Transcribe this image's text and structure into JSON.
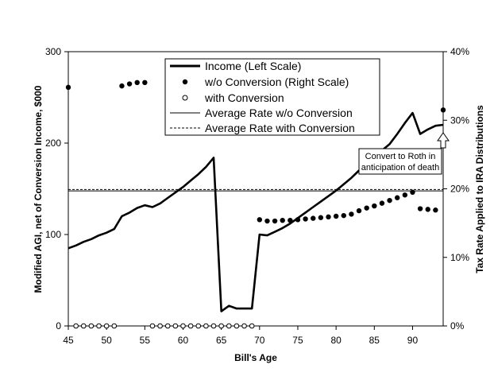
{
  "chart_data": {
    "type": "line",
    "xlabel": "Bill's Age",
    "ylabel_left": "Modified AGI, net of Conversion Income, $000",
    "ylabel_right": "Tax Rate Applied to IRA Distributions",
    "xlim": [
      45,
      94
    ],
    "ylim_left": [
      0,
      300
    ],
    "ylim_right": [
      0,
      40
    ],
    "x_ticks": [
      "45",
      "50",
      "55",
      "60",
      "65",
      "70",
      "75",
      "80",
      "85",
      "90"
    ],
    "y_left_ticks": [
      "0",
      "100",
      "200",
      "300"
    ],
    "y_right_ticks": [
      "0%",
      "10%",
      "20%",
      "30%",
      "40%"
    ],
    "legend_position": "top-center",
    "grid": false,
    "series": [
      {
        "name": "Income (Left Scale)",
        "axis": "left",
        "style": "thick-line",
        "x": [
          45,
          46,
          47,
          48,
          49,
          50,
          51,
          52,
          53,
          54,
          55,
          56,
          57,
          58,
          59,
          60,
          61,
          62,
          63,
          64,
          65,
          66,
          67,
          68,
          69,
          70,
          71,
          72,
          73,
          74,
          75,
          76,
          77,
          78,
          79,
          80,
          81,
          82,
          83,
          84,
          85,
          86,
          87,
          88,
          89,
          90,
          91,
          92,
          93,
          94
        ],
        "values": [
          85,
          88,
          92,
          95,
          99,
          102,
          106,
          120,
          124,
          129,
          132,
          130,
          134,
          140,
          146,
          152,
          159,
          166,
          174,
          184,
          16,
          22,
          19,
          19,
          19,
          100,
          99,
          103,
          107,
          112,
          118,
          124,
          130,
          136,
          142,
          148,
          155,
          162,
          170,
          177,
          185,
          192,
          199,
          210,
          222,
          233,
          210,
          215,
          219,
          220
        ]
      },
      {
        "name": "w/o Conversion (Right Scale)",
        "axis": "right",
        "style": "filled-dots",
        "x": [
          45,
          52,
          53,
          54,
          55,
          70,
          71,
          72,
          73,
          74,
          75,
          76,
          77,
          78,
          79,
          80,
          81,
          82,
          83,
          84,
          85,
          86,
          87,
          88,
          89,
          90,
          91,
          92,
          93,
          94
        ],
        "values": [
          34.8,
          35,
          35.3,
          35.5,
          35.5,
          15.5,
          15.3,
          15.3,
          15.4,
          15.4,
          15.5,
          15.6,
          15.7,
          15.8,
          15.9,
          16,
          16.1,
          16.3,
          16.8,
          17.2,
          17.5,
          17.9,
          18.3,
          18.7,
          19.1,
          19.5,
          17.1,
          17,
          16.9,
          31.5
        ]
      },
      {
        "name": "with Conversion",
        "axis": "right",
        "style": "open-dots",
        "x": [
          46,
          47,
          48,
          49,
          50,
          51,
          56,
          57,
          58,
          59,
          60,
          61,
          62,
          63,
          64,
          65,
          66,
          67,
          68,
          69
        ],
        "values": [
          0,
          0,
          0,
          0,
          0,
          0,
          0,
          0,
          0,
          0,
          0,
          0,
          0,
          0,
          0,
          0,
          0,
          0,
          0,
          0
        ]
      },
      {
        "name": "Average Rate w/o Conversion",
        "axis": "right",
        "style": "thin-line",
        "x": [
          45,
          94
        ],
        "values": [
          19.7,
          19.7
        ]
      },
      {
        "name": "Average Rate with Conversion",
        "axis": "right",
        "style": "dashed-line",
        "x": [
          45,
          94
        ],
        "values": [
          19.9,
          19.9
        ]
      }
    ],
    "annotation": {
      "lines": [
        "Convert to Roth in",
        "anticipation of death"
      ],
      "arrow_x": 94,
      "arrow_to_right_value": 28.5
    }
  }
}
